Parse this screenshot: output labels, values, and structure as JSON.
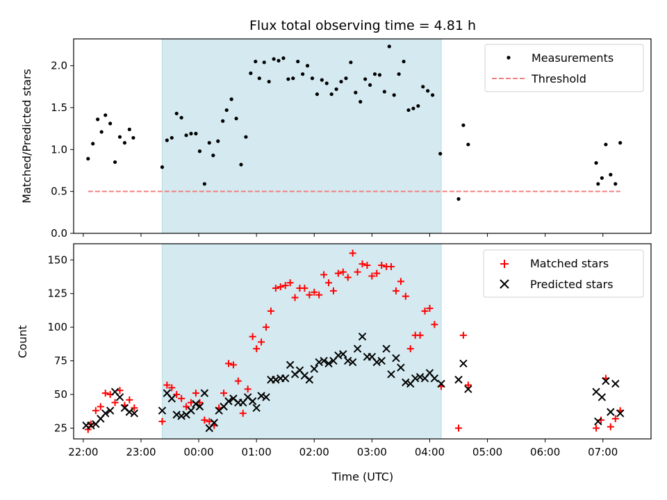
{
  "chart_data": [
    {
      "type": "scatter",
      "title": "Flux total observing time = 4.81 h",
      "ylabel": "Matched/Predicted stars",
      "xlabel": "",
      "xlim": [
        "21:50",
        "07:50"
      ],
      "ylim": [
        0,
        2.32
      ],
      "x_ticks": [
        "22:00",
        "23:00",
        "00:00",
        "01:00",
        "02:00",
        "03:00",
        "04:00",
        "05:00",
        "06:00",
        "07:00"
      ],
      "y_ticks": [
        "0.0",
        "0.5",
        "1.0",
        "1.5",
        "2.0"
      ],
      "legend_position": "top-right",
      "shaded_interval": {
        "start": "23:22",
        "end": "04:12",
        "color": "#d4eaf0"
      },
      "series": [
        {
          "name": "Measurements",
          "color": "#000000",
          "marker": "dot",
          "points": [
            [
              "22:05",
              0.89
            ],
            [
              "22:10",
              1.07
            ],
            [
              "22:15",
              1.36
            ],
            [
              "22:19",
              1.21
            ],
            [
              "22:23",
              1.41
            ],
            [
              "22:28",
              1.31
            ],
            [
              "22:33",
              0.85
            ],
            [
              "22:38",
              1.15
            ],
            [
              "22:43",
              1.08
            ],
            [
              "22:48",
              1.24
            ],
            [
              "22:52",
              1.14
            ],
            [
              "23:22",
              0.79
            ],
            [
              "23:27",
              1.11
            ],
            [
              "23:32",
              1.14
            ],
            [
              "23:37",
              1.43
            ],
            [
              "23:42",
              1.38
            ],
            [
              "23:47",
              1.17
            ],
            [
              "23:52",
              1.19
            ],
            [
              "23:57",
              1.19
            ],
            [
              "00:01",
              0.98
            ],
            [
              "00:06",
              0.59
            ],
            [
              "00:11",
              1.08
            ],
            [
              "00:15",
              0.93
            ],
            [
              "00:20",
              1.1
            ],
            [
              "00:25",
              1.34
            ],
            [
              "00:29",
              1.47
            ],
            [
              "00:34",
              1.6
            ],
            [
              "00:39",
              1.37
            ],
            [
              "00:44",
              0.82
            ],
            [
              "00:49",
              1.15
            ],
            [
              "00:54",
              1.91
            ],
            [
              "00:59",
              2.05
            ],
            [
              "01:03",
              1.85
            ],
            [
              "01:08",
              2.04
            ],
            [
              "01:13",
              1.81
            ],
            [
              "01:18",
              2.08
            ],
            [
              "01:23",
              2.06
            ],
            [
              "01:28",
              2.09
            ],
            [
              "01:33",
              1.84
            ],
            [
              "01:38",
              1.85
            ],
            [
              "01:43",
              2.05
            ],
            [
              "01:48",
              1.9
            ],
            [
              "01:53",
              2.0
            ],
            [
              "01:58",
              1.85
            ],
            [
              "02:03",
              1.66
            ],
            [
              "02:08",
              1.83
            ],
            [
              "02:13",
              1.79
            ],
            [
              "02:18",
              1.66
            ],
            [
              "02:23",
              1.72
            ],
            [
              "02:28",
              1.81
            ],
            [
              "02:33",
              1.85
            ],
            [
              "02:38",
              2.04
            ],
            [
              "02:43",
              1.68
            ],
            [
              "02:48",
              1.57
            ],
            [
              "02:53",
              1.84
            ],
            [
              "02:58",
              1.77
            ],
            [
              "03:03",
              1.9
            ],
            [
              "03:08",
              1.89
            ],
            [
              "03:13",
              1.69
            ],
            [
              "03:18",
              2.23
            ],
            [
              "03:23",
              1.65
            ],
            [
              "03:28",
              1.9
            ],
            [
              "03:33",
              2.05
            ],
            [
              "03:38",
              1.47
            ],
            [
              "03:43",
              1.49
            ],
            [
              "03:48",
              1.52
            ],
            [
              "03:53",
              1.75
            ],
            [
              "03:58",
              1.7
            ],
            [
              "04:03",
              1.65
            ],
            [
              "04:11",
              0.95
            ],
            [
              "04:30",
              0.41
            ],
            [
              "04:35",
              1.29
            ],
            [
              "04:40",
              1.06
            ],
            [
              "06:53",
              0.84
            ],
            [
              "06:55",
              0.59
            ],
            [
              "06:59",
              0.66
            ],
            [
              "07:03",
              1.06
            ],
            [
              "07:08",
              0.7
            ],
            [
              "07:13",
              0.59
            ],
            [
              "07:18",
              1.08
            ]
          ]
        },
        {
          "name": "Threshold",
          "color": "#f08080",
          "style": "dashed",
          "points": [
            [
              "22:05",
              0.5
            ],
            [
              "07:18",
              0.5
            ]
          ]
        }
      ]
    },
    {
      "type": "scatter",
      "title": "",
      "xlabel": "Time (UTC)",
      "ylabel": "Count",
      "xlim": [
        "21:50",
        "07:50"
      ],
      "ylim": [
        17,
        162
      ],
      "x_ticks": [
        "22:00",
        "23:00",
        "00:00",
        "01:00",
        "02:00",
        "03:00",
        "04:00",
        "05:00",
        "06:00",
        "07:00"
      ],
      "y_ticks": [
        "25",
        "50",
        "75",
        "100",
        "125",
        "150"
      ],
      "legend_position": "top-right",
      "shaded_interval": {
        "start": "23:22",
        "end": "04:12",
        "color": "#d4eaf0"
      },
      "series": [
        {
          "name": "Matched stars",
          "color": "#ff0000",
          "marker": "plus",
          "points": [
            [
              "22:05",
              24
            ],
            [
              "22:08",
              28
            ],
            [
              "22:13",
              38
            ],
            [
              "22:18",
              41
            ],
            [
              "22:23",
              51
            ],
            [
              "22:28",
              50
            ],
            [
              "22:33",
              44
            ],
            [
              "22:38",
              53
            ],
            [
              "22:43",
              42
            ],
            [
              "22:48",
              46
            ],
            [
              "22:53",
              40
            ],
            [
              "23:22",
              30
            ],
            [
              "23:27",
              57
            ],
            [
              "23:32",
              55
            ],
            [
              "23:37",
              50
            ],
            [
              "23:42",
              47
            ],
            [
              "23:47",
              41
            ],
            [
              "23:52",
              44
            ],
            [
              "23:57",
              51
            ],
            [
              "00:01",
              44
            ],
            [
              "00:06",
              31
            ],
            [
              "00:11",
              30
            ],
            [
              "00:16",
              27
            ],
            [
              "00:21",
              40
            ],
            [
              "00:26",
              51
            ],
            [
              "00:31",
              73
            ],
            [
              "00:36",
              72
            ],
            [
              "00:41",
              60
            ],
            [
              "00:46",
              36
            ],
            [
              "00:51",
              54
            ],
            [
              "00:56",
              93
            ],
            [
              "01:00",
              84
            ],
            [
              "01:05",
              89
            ],
            [
              "01:10",
              100
            ],
            [
              "01:15",
              112
            ],
            [
              "01:20",
              129
            ],
            [
              "01:25",
              130
            ],
            [
              "01:30",
              131
            ],
            [
              "01:35",
              133
            ],
            [
              "01:40",
              122
            ],
            [
              "01:45",
              129
            ],
            [
              "01:50",
              129
            ],
            [
              "01:55",
              124
            ],
            [
              "02:00",
              126
            ],
            [
              "02:05",
              124
            ],
            [
              "02:10",
              139
            ],
            [
              "02:15",
              133
            ],
            [
              "02:20",
              127
            ],
            [
              "02:25",
              140
            ],
            [
              "02:30",
              141
            ],
            [
              "02:35",
              137
            ],
            [
              "02:40",
              155
            ],
            [
              "02:45",
              141
            ],
            [
              "02:50",
              147
            ],
            [
              "02:55",
              146
            ],
            [
              "03:00",
              138
            ],
            [
              "03:05",
              140
            ],
            [
              "03:10",
              146
            ],
            [
              "03:15",
              145
            ],
            [
              "03:20",
              145
            ],
            [
              "03:25",
              127
            ],
            [
              "03:30",
              134
            ],
            [
              "03:35",
              123
            ],
            [
              "03:40",
              84
            ],
            [
              "03:45",
              94
            ],
            [
              "03:50",
              94
            ],
            [
              "03:55",
              112
            ],
            [
              "04:00",
              114
            ],
            [
              "04:05",
              102
            ],
            [
              "04:12",
              56
            ],
            [
              "04:30",
              25
            ],
            [
              "04:35",
              94
            ],
            [
              "04:40",
              57
            ],
            [
              "06:53",
              25
            ],
            [
              "06:58",
              31
            ],
            [
              "07:03",
              62
            ],
            [
              "07:08",
              26
            ],
            [
              "07:13",
              32
            ],
            [
              "07:18",
              38
            ]
          ]
        },
        {
          "name": "Predicted stars",
          "color": "#000000",
          "marker": "x",
          "points": [
            [
              "22:03",
              27
            ],
            [
              "22:08",
              27
            ],
            [
              "22:13",
              28
            ],
            [
              "22:18",
              32
            ],
            [
              "22:23",
              36
            ],
            [
              "22:28",
              38
            ],
            [
              "22:33",
              52
            ],
            [
              "22:38",
              48
            ],
            [
              "22:43",
              40
            ],
            [
              "22:48",
              37
            ],
            [
              "22:53",
              36
            ],
            [
              "23:22",
              38
            ],
            [
              "23:27",
              51
            ],
            [
              "23:32",
              47
            ],
            [
              "23:37",
              35
            ],
            [
              "23:42",
              34
            ],
            [
              "23:47",
              35
            ],
            [
              "23:52",
              38
            ],
            [
              "23:57",
              43
            ],
            [
              "00:01",
              41
            ],
            [
              "00:06",
              51
            ],
            [
              "00:11",
              25
            ],
            [
              "00:16",
              29
            ],
            [
              "00:21",
              38
            ],
            [
              "00:26",
              41
            ],
            [
              "00:31",
              45
            ],
            [
              "00:36",
              47
            ],
            [
              "00:41",
              44
            ],
            [
              "00:46",
              44
            ],
            [
              "00:51",
              48
            ],
            [
              "00:56",
              45
            ],
            [
              "01:00",
              40
            ],
            [
              "01:05",
              49
            ],
            [
              "01:10",
              48
            ],
            [
              "01:15",
              61
            ],
            [
              "01:20",
              61
            ],
            [
              "01:25",
              62
            ],
            [
              "01:30",
              62
            ],
            [
              "01:35",
              72
            ],
            [
              "01:40",
              65
            ],
            [
              "01:45",
              68
            ],
            [
              "01:50",
              64
            ],
            [
              "01:55",
              61
            ],
            [
              "02:00",
              69
            ],
            [
              "02:05",
              74
            ],
            [
              "02:10",
              75
            ],
            [
              "02:15",
              73
            ],
            [
              "02:20",
              75
            ],
            [
              "02:25",
              79
            ],
            [
              "02:30",
              80
            ],
            [
              "02:35",
              75
            ],
            [
              "02:40",
              74
            ],
            [
              "02:45",
              84
            ],
            [
              "02:50",
              93
            ],
            [
              "02:55",
              78
            ],
            [
              "03:00",
              78
            ],
            [
              "03:05",
              74
            ],
            [
              "03:10",
              75
            ],
            [
              "03:15",
              84
            ],
            [
              "03:20",
              65
            ],
            [
              "03:25",
              77
            ],
            [
              "03:30",
              70
            ],
            [
              "03:35",
              59
            ],
            [
              "03:40",
              58
            ],
            [
              "03:45",
              62
            ],
            [
              "03:50",
              63
            ],
            [
              "03:55",
              62
            ],
            [
              "04:00",
              66
            ],
            [
              "04:05",
              62
            ],
            [
              "04:12",
              58
            ],
            [
              "04:30",
              61
            ],
            [
              "04:35",
              73
            ],
            [
              "04:40",
              54
            ],
            [
              "06:53",
              52
            ],
            [
              "06:55",
              30
            ],
            [
              "06:59",
              48
            ],
            [
              "07:03",
              60
            ],
            [
              "07:08",
              37
            ],
            [
              "07:13",
              58
            ],
            [
              "07:18",
              36
            ]
          ]
        }
      ]
    }
  ]
}
